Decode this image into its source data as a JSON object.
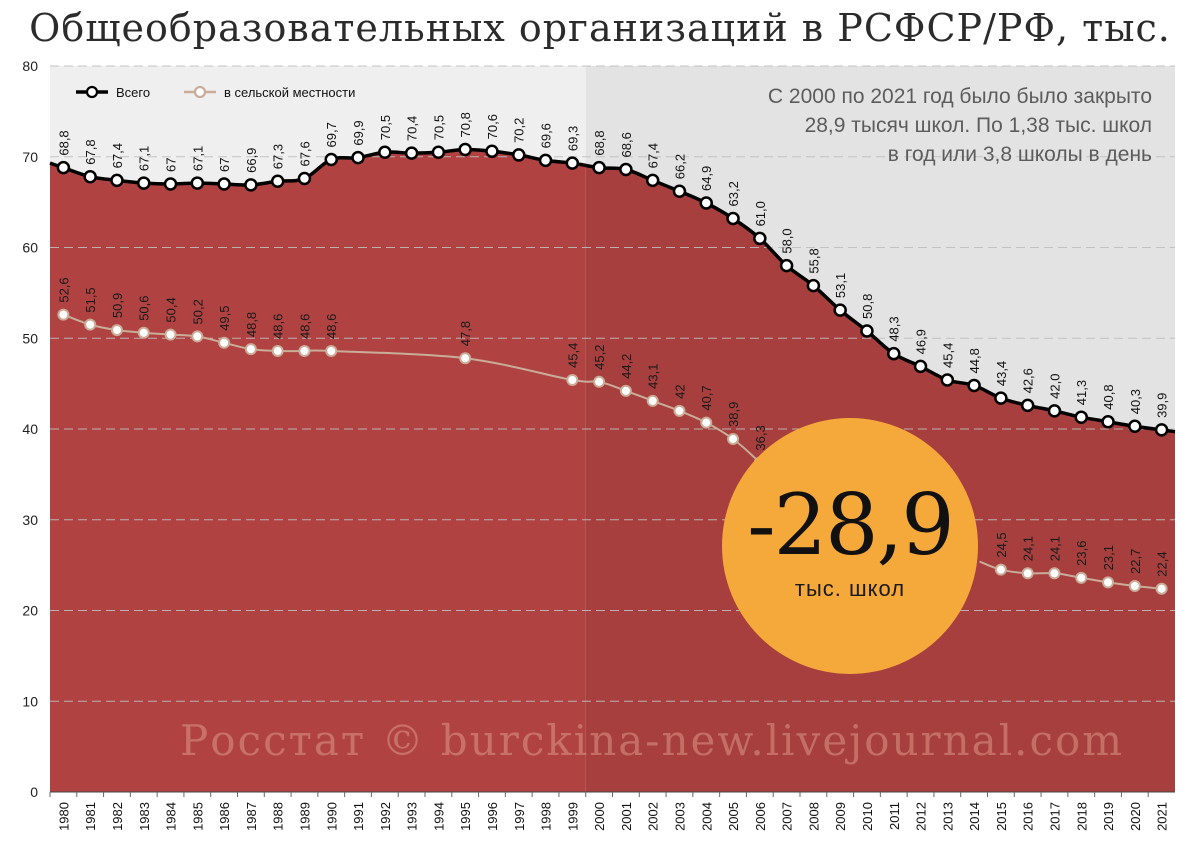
{
  "chart_data": {
    "type": "line",
    "title": "Общеобразовательных организаций в РСФСР/РФ, тыс.",
    "xlabel": "",
    "ylabel": "",
    "ylim": [
      0,
      80
    ],
    "y_ticks": [
      "0",
      "10",
      "20",
      "30",
      "40",
      "50",
      "60",
      "70",
      "80"
    ],
    "x_range": [
      1980,
      2021
    ],
    "grid": true,
    "legend_position": "top-left",
    "highlight_period_start": 2000,
    "x": [
      1980,
      1981,
      1982,
      1983,
      1984,
      1985,
      1986,
      1987,
      1988,
      1989,
      1990,
      1991,
      1992,
      1993,
      1994,
      1995,
      1996,
      1997,
      1998,
      1999,
      2000,
      2001,
      2002,
      2003,
      2004,
      2005,
      2006,
      2007,
      2008,
      2009,
      2010,
      2011,
      2012,
      2013,
      2014,
      2015,
      2016,
      2017,
      2018,
      2019,
      2020,
      2021
    ],
    "x_labels": [
      "1980",
      "1981",
      "1982",
      "1983",
      "1984",
      "1985",
      "1986",
      "1987",
      "1988",
      "1989",
      "1990",
      "1991",
      "1992",
      "1993",
      "1994",
      "1995",
      "1996",
      "1997",
      "1998",
      "1999",
      "2000",
      "2001",
      "2002",
      "2003",
      "2004",
      "2005",
      "2006",
      "2007",
      "2008",
      "2009",
      "2010",
      "2011",
      "2012",
      "2013",
      "2014",
      "2015",
      "2016",
      "2017",
      "2018",
      "2019",
      "2020",
      "2021"
    ],
    "series": [
      {
        "name": "Всего",
        "color": "#000000",
        "x": [
          1980,
          1981,
          1982,
          1983,
          1984,
          1985,
          1986,
          1987,
          1988,
          1989,
          1990,
          1991,
          1992,
          1993,
          1994,
          1995,
          1996,
          1997,
          1998,
          1999,
          2000,
          2001,
          2002,
          2003,
          2004,
          2005,
          2006,
          2007,
          2008,
          2009,
          2010,
          2011,
          2012,
          2013,
          2014,
          2015,
          2016,
          2017,
          2018,
          2019,
          2020,
          2021
        ],
        "values": [
          68.8,
          67.8,
          67.4,
          67.1,
          67,
          67.1,
          67,
          66.9,
          67.3,
          67.6,
          69.7,
          69.9,
          70.5,
          70.4,
          70.5,
          70.8,
          70.6,
          70.2,
          69.6,
          69.3,
          68.8,
          68.6,
          67.4,
          66.2,
          64.9,
          63.2,
          61.0,
          58.0,
          55.8,
          53.1,
          50.8,
          48.3,
          46.9,
          45.4,
          44.8,
          43.4,
          42.6,
          42.0,
          41.3,
          40.8,
          40.3,
          39.9
        ],
        "labels": [
          "68,8",
          "67,8",
          "67,4",
          "67,1",
          "67",
          "67,1",
          "67",
          "66,9",
          "67,3",
          "67,6",
          "69,7",
          "69,9",
          "70,5",
          "70,4",
          "70,5",
          "70,8",
          "70,6",
          "70,2",
          "69,6",
          "69,3",
          "68,8",
          "68,6",
          "67,4",
          "66,2",
          "64,9",
          "63,2",
          "61,0",
          "58,0",
          "55,8",
          "53,1",
          "50,8",
          "48,3",
          "46,9",
          "45,4",
          "44,8",
          "43,4",
          "42,6",
          "42,0",
          "41,3",
          "40,8",
          "40,3",
          "39,9"
        ]
      },
      {
        "name": "в сельской местности",
        "color": "#c9ad98",
        "x": [
          1980,
          1981,
          1982,
          1983,
          1984,
          1985,
          1986,
          1987,
          1988,
          1989,
          1990,
          1995,
          1999,
          2000,
          2001,
          2002,
          2003,
          2004,
          2005,
          2006,
          2015,
          2016,
          2017,
          2018,
          2019,
          2020,
          2021
        ],
        "values": [
          52.6,
          51.5,
          50.9,
          50.6,
          50.4,
          50.2,
          49.5,
          48.8,
          48.6,
          48.6,
          48.6,
          47.8,
          45.4,
          45.2,
          44.2,
          43.1,
          42,
          40.7,
          38.9,
          36.3,
          24.5,
          24.1,
          24.1,
          23.6,
          23.1,
          22.7,
          22.4
        ],
        "labels": [
          "52,6",
          "51,5",
          "50,9",
          "50,6",
          "50,4",
          "50,2",
          "49,5",
          "48,8",
          "48,6",
          "48,6",
          "48,6",
          "47,8",
          "45,4",
          "45,2",
          "44,2",
          "43,1",
          "42",
          "40,7",
          "38,9",
          "36,3",
          "24,5",
          "24,1",
          "24,1",
          "23,6",
          "23,1",
          "22,7",
          "22,4"
        ]
      }
    ],
    "annotation": {
      "lines": [
        "С 2000 по 2021 год было было закрыто",
        "28,9 тысяч школ. По 1,38 тыс. школ",
        "в год или 3,8 школы в день"
      ]
    },
    "badge": {
      "value": "-28,9",
      "unit": "тыс. школ",
      "color": "#f6a93b"
    },
    "watermark": "Росстат © burckina-new.livejournal.com",
    "colors": {
      "area": "#b04342",
      "area_dark": "#a73f3e",
      "bg_early": "#efefef",
      "bg_late": "#e3e3e3"
    }
  }
}
